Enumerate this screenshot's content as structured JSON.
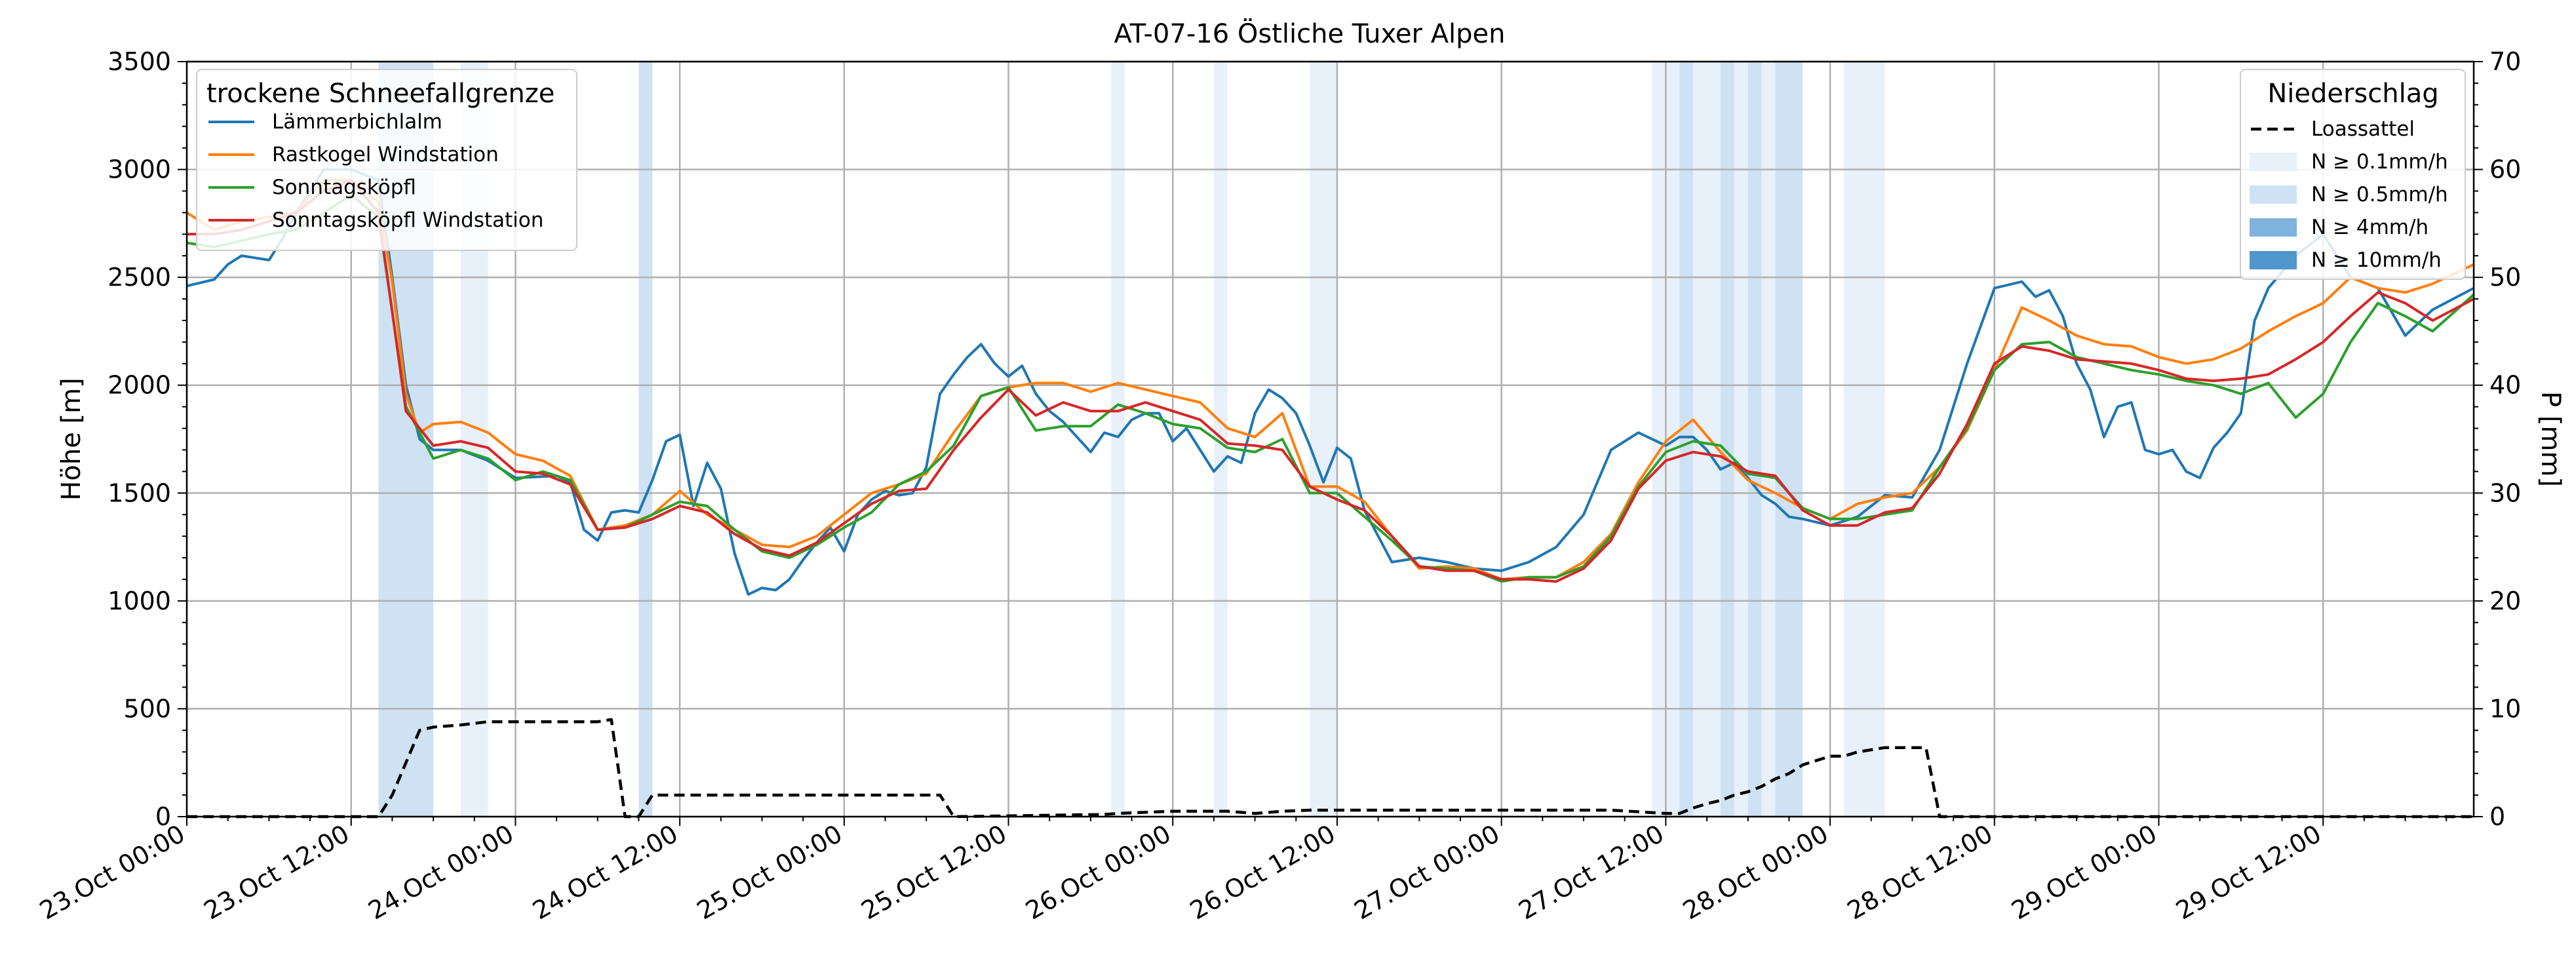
{
  "chart_data": {
    "type": "line",
    "title": "AT-07-16 Östliche Tuxer Alpen",
    "ylabel": "Höhe [m]",
    "ylabel_right": "P [mm]",
    "ylim": [
      0,
      3500
    ],
    "ylim_right": [
      0,
      70
    ],
    "yticks": [
      "0",
      "500",
      "1000",
      "1500",
      "2000",
      "2500",
      "3000",
      "3500"
    ],
    "yticks_right": [
      "0",
      "10",
      "20",
      "30",
      "40",
      "50",
      "60",
      "70"
    ],
    "x_range_hours": [
      0,
      167
    ],
    "xticks": [
      "23.Oct 00:00",
      "23.Oct 12:00",
      "24.Oct 00:00",
      "24.Oct 12:00",
      "25.Oct 00:00",
      "25.Oct 12:00",
      "26.Oct 00:00",
      "26.Oct 12:00",
      "27.Oct 00:00",
      "27.Oct 12:00",
      "28.Oct 00:00",
      "28.Oct 12:00",
      "29.Oct 00:00",
      "29.Oct 12:00"
    ],
    "grid": true,
    "legend_left": {
      "title": "trockene Schneefallgrenze",
      "placement": "top-left",
      "entries": [
        "Lämmerbichlalm",
        "Rastkogel Windstation",
        "Sonntagsköpfl",
        "Sonntagsköpfl Windstation"
      ]
    },
    "legend_right": {
      "title": "Niederschlag",
      "placement": "top-right",
      "entries": [
        "Loassattel",
        "N ≥ 0.1mm/h",
        "N ≥ 0.5mm/h",
        "N ≥ 4mm/h",
        "N ≥ 10mm/h"
      ]
    },
    "colors": {
      "Lämmerbichlalm": "#1f77b4",
      "Rastkogel Windstation": "#ff7f0e",
      "Sonntagsköpfl": "#2ca02c",
      "Sonntagsköpfl Windstation": "#d62728",
      "Loassattel": "#000000",
      "N ≥ 0.1mm/h": "#e8f0fa",
      "N ≥ 0.5mm/h": "#cfe2f3",
      "N ≥ 4mm/h": "#7fb3dd",
      "N ≥ 10mm/h": "#4f97cc"
    },
    "precip_bands": [
      {
        "start": 14.0,
        "end": 18.0,
        "level": "N ≥ 0.5mm/h"
      },
      {
        "start": 20.0,
        "end": 22.0,
        "level": "N ≥ 0.1mm/h"
      },
      {
        "start": 33.0,
        "end": 34.0,
        "level": "N ≥ 0.5mm/h"
      },
      {
        "start": 67.5,
        "end": 68.5,
        "level": "N ≥ 0.1mm/h"
      },
      {
        "start": 75.0,
        "end": 76.0,
        "level": "N ≥ 0.1mm/h"
      },
      {
        "start": 82.0,
        "end": 84.0,
        "level": "N ≥ 0.1mm/h"
      },
      {
        "start": 107.0,
        "end": 109.0,
        "level": "N ≥ 0.1mm/h"
      },
      {
        "start": 109.0,
        "end": 110.0,
        "level": "N ≥ 0.5mm/h"
      },
      {
        "start": 110.0,
        "end": 112.0,
        "level": "N ≥ 0.1mm/h"
      },
      {
        "start": 112.0,
        "end": 113.0,
        "level": "N ≥ 0.5mm/h"
      },
      {
        "start": 113.0,
        "end": 114.0,
        "level": "N ≥ 0.1mm/h"
      },
      {
        "start": 114.0,
        "end": 115.0,
        "level": "N ≥ 0.5mm/h"
      },
      {
        "start": 115.0,
        "end": 116.0,
        "level": "N ≥ 0.1mm/h"
      },
      {
        "start": 116.0,
        "end": 118.0,
        "level": "N ≥ 0.5mm/h"
      },
      {
        "start": 121.0,
        "end": 124.0,
        "level": "N ≥ 0.1mm/h"
      }
    ],
    "series": [
      {
        "name": "Lämmerbichlalm",
        "axis": "left",
        "x": [
          0,
          2,
          3,
          4,
          6,
          7,
          8,
          10,
          12,
          14,
          15,
          16,
          17,
          18,
          20,
          22,
          24,
          27,
          28,
          29,
          30,
          31,
          32,
          33,
          34,
          35,
          36,
          37,
          38,
          39,
          40,
          41,
          42,
          43,
          44,
          45,
          46,
          47,
          48,
          49,
          50,
          51,
          52,
          53,
          54,
          55,
          56,
          57,
          58,
          59,
          60,
          61,
          62,
          63,
          64,
          65,
          66,
          67,
          68,
          69,
          70,
          71,
          72,
          73,
          74,
          75,
          76,
          77,
          78,
          79,
          80,
          81,
          82,
          83,
          84,
          85,
          86,
          87,
          88,
          90,
          92,
          94,
          96,
          98,
          100,
          102,
          104,
          106,
          108,
          109,
          110,
          111,
          112,
          113,
          114,
          115,
          116,
          117,
          118,
          120,
          122,
          124,
          126,
          128,
          130,
          132,
          134,
          135,
          136,
          137,
          138,
          139,
          140,
          141,
          142,
          143,
          144,
          145,
          146,
          147,
          148,
          149,
          150,
          151,
          152,
          154,
          156,
          158,
          160,
          162,
          164,
          167
        ],
        "values": [
          2460,
          2490,
          2560,
          2600,
          2580,
          2680,
          2800,
          3000,
          3000,
          2950,
          2500,
          2000,
          1750,
          1700,
          1700,
          1650,
          1570,
          1580,
          1550,
          1330,
          1280,
          1410,
          1420,
          1410,
          1560,
          1740,
          1770,
          1440,
          1640,
          1520,
          1220,
          1030,
          1060,
          1050,
          1100,
          1190,
          1270,
          1340,
          1230,
          1400,
          1470,
          1510,
          1490,
          1500,
          1620,
          1960,
          2050,
          2130,
          2190,
          2100,
          2040,
          2090,
          1960,
          1880,
          1830,
          1760,
          1690,
          1780,
          1760,
          1840,
          1870,
          1870,
          1740,
          1800,
          1700,
          1600,
          1670,
          1640,
          1870,
          1980,
          1940,
          1870,
          1720,
          1550,
          1710,
          1660,
          1420,
          1300,
          1180,
          1200,
          1180,
          1150,
          1140,
          1180,
          1250,
          1400,
          1700,
          1780,
          1720,
          1760,
          1760,
          1700,
          1610,
          1640,
          1570,
          1490,
          1450,
          1390,
          1380,
          1350,
          1390,
          1490,
          1480,
          1700,
          2100,
          2450,
          2480,
          2410,
          2440,
          2320,
          2100,
          1980,
          1760,
          1900,
          1920,
          1700,
          1680,
          1700,
          1600,
          1570,
          1710,
          1780,
          1870,
          2300,
          2450,
          2600,
          2700,
          2500,
          2450,
          2230,
          2350,
          2450
        ]
      },
      {
        "name": "Rastkogel Windstation",
        "axis": "left",
        "x": [
          0,
          2,
          4,
          6,
          8,
          10,
          12,
          14,
          15,
          16,
          17,
          18,
          20,
          22,
          24,
          26,
          28,
          30,
          32,
          34,
          36,
          38,
          40,
          42,
          44,
          46,
          48,
          50,
          52,
          54,
          56,
          58,
          60,
          62,
          64,
          66,
          68,
          70,
          72,
          74,
          76,
          78,
          80,
          82,
          84,
          86,
          88,
          90,
          92,
          94,
          96,
          98,
          100,
          102,
          104,
          106,
          108,
          110,
          112,
          114,
          116,
          118,
          120,
          122,
          124,
          126,
          128,
          130,
          132,
          134,
          136,
          138,
          140,
          142,
          144,
          146,
          148,
          150,
          152,
          154,
          156,
          158,
          160,
          162,
          164,
          167
        ],
        "values": [
          2800,
          2720,
          2760,
          2780,
          2800,
          2950,
          2950,
          2850,
          2480,
          1960,
          1780,
          1820,
          1830,
          1780,
          1680,
          1650,
          1580,
          1330,
          1350,
          1400,
          1510,
          1400,
          1330,
          1260,
          1250,
          1300,
          1400,
          1500,
          1540,
          1590,
          1780,
          1950,
          1990,
          2010,
          2010,
          1970,
          2010,
          1980,
          1950,
          1920,
          1800,
          1760,
          1870,
          1530,
          1530,
          1460,
          1300,
          1150,
          1160,
          1150,
          1100,
          1110,
          1110,
          1180,
          1310,
          1550,
          1740,
          1840,
          1690,
          1560,
          1500,
          1430,
          1380,
          1450,
          1480,
          1500,
          1620,
          1790,
          2070,
          2360,
          2300,
          2230,
          2190,
          2180,
          2130,
          2100,
          2120,
          2170,
          2250,
          2320,
          2380,
          2500,
          2450,
          2430,
          2470,
          2560
        ]
      },
      {
        "name": "Sonntagsköpfl",
        "axis": "left",
        "x": [
          0,
          2,
          4,
          6,
          8,
          10,
          12,
          14,
          16,
          18,
          20,
          22,
          24,
          26,
          28,
          30,
          32,
          34,
          36,
          38,
          40,
          42,
          44,
          46,
          48,
          50,
          52,
          54,
          56,
          58,
          60,
          62,
          64,
          66,
          68,
          70,
          72,
          74,
          76,
          78,
          80,
          82,
          84,
          86,
          88,
          90,
          92,
          94,
          96,
          98,
          100,
          102,
          104,
          106,
          108,
          110,
          112,
          114,
          116,
          118,
          120,
          122,
          124,
          126,
          128,
          130,
          132,
          134,
          136,
          138,
          140,
          142,
          144,
          146,
          148,
          150,
          152,
          154,
          156,
          158,
          160,
          162,
          164,
          167
        ],
        "values": [
          2660,
          2640,
          2670,
          2700,
          2720,
          2800,
          2880,
          2780,
          1900,
          1660,
          1700,
          1660,
          1560,
          1600,
          1560,
          1330,
          1340,
          1400,
          1460,
          1440,
          1330,
          1230,
          1200,
          1260,
          1340,
          1410,
          1540,
          1600,
          1720,
          1950,
          1990,
          1790,
          1810,
          1810,
          1910,
          1870,
          1820,
          1800,
          1710,
          1690,
          1750,
          1500,
          1500,
          1390,
          1280,
          1160,
          1150,
          1140,
          1090,
          1110,
          1110,
          1160,
          1300,
          1530,
          1690,
          1740,
          1720,
          1590,
          1570,
          1430,
          1380,
          1380,
          1400,
          1420,
          1620,
          1800,
          2070,
          2190,
          2200,
          2130,
          2100,
          2070,
          2050,
          2020,
          2000,
          1960,
          2010,
          1850,
          1960,
          2200,
          2380,
          2320,
          2250,
          2420
        ]
      },
      {
        "name": "Sonntagsköpfl Windstation",
        "axis": "left",
        "x": [
          0,
          2,
          4,
          6,
          8,
          10,
          12,
          14,
          16,
          18,
          20,
          22,
          24,
          26,
          28,
          30,
          32,
          34,
          36,
          38,
          40,
          42,
          44,
          46,
          48,
          50,
          52,
          54,
          56,
          58,
          60,
          62,
          64,
          66,
          68,
          70,
          72,
          74,
          76,
          78,
          80,
          82,
          84,
          86,
          88,
          90,
          92,
          94,
          96,
          98,
          100,
          102,
          104,
          106,
          108,
          110,
          112,
          114,
          116,
          118,
          120,
          122,
          124,
          126,
          128,
          130,
          132,
          134,
          136,
          138,
          140,
          142,
          144,
          146,
          148,
          150,
          152,
          154,
          156,
          158,
          160,
          162,
          164,
          167
        ],
        "values": [
          2700,
          2700,
          2720,
          2760,
          2800,
          2900,
          2950,
          2800,
          1880,
          1720,
          1740,
          1710,
          1600,
          1590,
          1540,
          1330,
          1340,
          1380,
          1440,
          1410,
          1310,
          1240,
          1210,
          1270,
          1360,
          1450,
          1510,
          1520,
          1700,
          1850,
          1980,
          1860,
          1920,
          1880,
          1880,
          1920,
          1880,
          1840,
          1730,
          1720,
          1700,
          1530,
          1470,
          1420,
          1300,
          1160,
          1140,
          1140,
          1100,
          1100,
          1090,
          1150,
          1280,
          1520,
          1650,
          1690,
          1670,
          1600,
          1580,
          1420,
          1350,
          1350,
          1410,
          1430,
          1590,
          1820,
          2100,
          2180,
          2160,
          2120,
          2110,
          2100,
          2070,
          2030,
          2020,
          2030,
          2050,
          2120,
          2200,
          2320,
          2430,
          2380,
          2300,
          2400
        ]
      },
      {
        "name": "Loassattel",
        "axis": "right",
        "x": [
          0,
          14,
          15,
          16,
          17,
          18,
          20,
          22,
          30,
          31,
          32,
          33,
          34,
          35,
          55,
          56,
          67,
          68,
          70,
          72,
          74,
          76,
          78,
          80,
          82,
          96,
          100,
          104,
          108,
          109,
          110,
          111,
          112,
          113,
          114,
          115,
          116,
          117,
          118,
          120,
          121,
          122,
          124,
          127,
          128,
          167
        ],
        "values": [
          0,
          0,
          2,
          5,
          8,
          8.3,
          8.5,
          8.8,
          8.8,
          9,
          0,
          0,
          2,
          2,
          2,
          0,
          0.2,
          0.3,
          0.4,
          0.5,
          0.5,
          0.5,
          0.3,
          0.5,
          0.6,
          0.6,
          0.6,
          0.6,
          0.3,
          0.3,
          0.8,
          1.2,
          1.5,
          2,
          2.3,
          2.8,
          3.5,
          4,
          4.8,
          5.6,
          5.6,
          6,
          6.4,
          6.4,
          0,
          0
        ]
      }
    ]
  }
}
